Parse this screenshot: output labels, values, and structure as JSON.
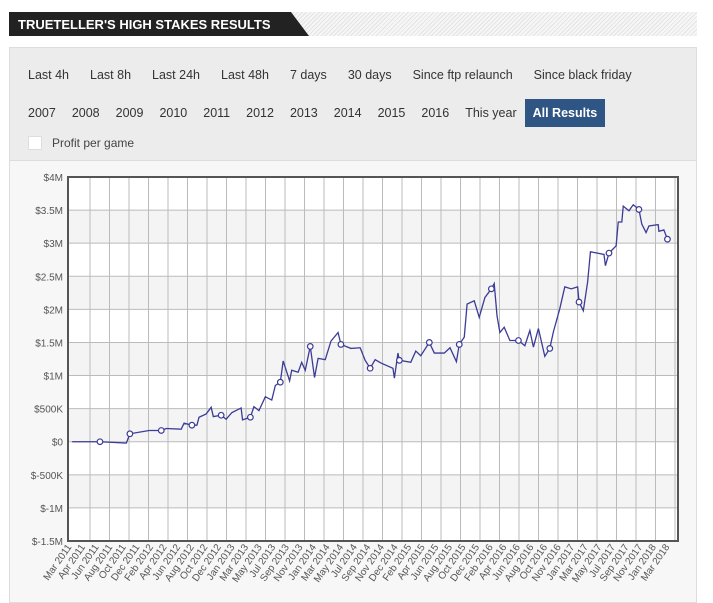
{
  "header": {
    "title": "TRUETELLER'S HIGH STAKES RESULTS"
  },
  "filters": {
    "row1": [
      "Last 4h",
      "Last 8h",
      "Last 24h",
      "Last 48h",
      "7 days",
      "30 days",
      "Since ftp relaunch",
      "Since black friday"
    ],
    "row2": [
      "2007",
      "2008",
      "2009",
      "2010",
      "2011",
      "2012",
      "2013",
      "2014",
      "2015",
      "2016",
      "This year",
      "All Results"
    ],
    "active": "All Results",
    "checkbox_label": "Profit per game",
    "checkbox_checked": false
  },
  "colors": {
    "line": "#3b3b98",
    "accent": "#2e5583"
  },
  "chart_data": {
    "type": "line",
    "title": "",
    "xlabel": "",
    "ylabel": "",
    "ylim": [
      -1500000,
      4000000
    ],
    "xlim": [
      0,
      85
    ],
    "x_unit": "months since Mar 2011",
    "yticks": [
      {
        "v": 4000000,
        "l": "$4M"
      },
      {
        "v": 3500000,
        "l": "$3.5M"
      },
      {
        "v": 3000000,
        "l": "$3M"
      },
      {
        "v": 2500000,
        "l": "$2.5M"
      },
      {
        "v": 2000000,
        "l": "$2M"
      },
      {
        "v": 1500000,
        "l": "$1.5M"
      },
      {
        "v": 1000000,
        "l": "$1M"
      },
      {
        "v": 500000,
        "l": "$500K"
      },
      {
        "v": 0,
        "l": "$0"
      },
      {
        "v": -500000,
        "l": "$-500K"
      },
      {
        "v": -1000000,
        "l": "$-1M"
      },
      {
        "v": -1500000,
        "l": "$-1.5M"
      }
    ],
    "xticks": [
      "Mar 2011",
      "Apr 2011",
      "Jun 2011",
      "Aug 2011",
      "Oct 2011",
      "Dec 2011",
      "Feb 2012",
      "Apr 2012",
      "Jun 2012",
      "Aug 2012",
      "Oct 2012",
      "Dec 2012",
      "Jan 2013",
      "Mar 2013",
      "May 2013",
      "Jul 2013",
      "Sep 2013",
      "Nov 2013",
      "Jan 2014",
      "Mar 2014",
      "May 2014",
      "Jul 2014",
      "Sep 2014",
      "Nov 2014",
      "Dec 2014",
      "Feb 2015",
      "Apr 2015",
      "Jun 2015",
      "Aug 2015",
      "Oct 2015",
      "Dec 2015",
      "Feb 2016",
      "Apr 2016",
      "Jun 2016",
      "Aug 2016",
      "Oct 2016",
      "Nov 2016",
      "Jan 2017",
      "Mar 2017",
      "May 2017",
      "Jul 2017",
      "Sep 2017",
      "Nov 2017",
      "Jan 2018",
      "Mar 2018"
    ],
    "series": [
      {
        "name": "Profit",
        "points": [
          [
            0.3,
            0,
            0
          ],
          [
            4.2,
            0,
            1
          ],
          [
            7.9,
            -0.02,
            0
          ],
          [
            8.4,
            0.12,
            1
          ],
          [
            11.1,
            0.17,
            0
          ],
          [
            12.8,
            0.17,
            1
          ],
          [
            13.5,
            0.2,
            0
          ],
          [
            15.6,
            0.19,
            0
          ],
          [
            16.0,
            0.28,
            0
          ],
          [
            17.1,
            0.25,
            1
          ],
          [
            17.8,
            0.25,
            0
          ],
          [
            18.1,
            0.37,
            0
          ],
          [
            19.1,
            0.42,
            0
          ],
          [
            19.8,
            0.52,
            0
          ],
          [
            20.1,
            0.38,
            0
          ],
          [
            21.2,
            0.4,
            1
          ],
          [
            21.9,
            0.34,
            0
          ],
          [
            22.7,
            0.44,
            0
          ],
          [
            24.0,
            0.51,
            0
          ],
          [
            24.2,
            0.33,
            0
          ],
          [
            25.3,
            0.37,
            1
          ],
          [
            25.8,
            0.53,
            0
          ],
          [
            26.5,
            0.47,
            0
          ],
          [
            27.4,
            0.68,
            0
          ],
          [
            28.3,
            0.63,
            0
          ],
          [
            28.8,
            0.85,
            0
          ],
          [
            29.5,
            0.9,
            1
          ],
          [
            29.9,
            1.22,
            0
          ],
          [
            30.8,
            0.92,
            0
          ],
          [
            31.1,
            1.08,
            0
          ],
          [
            32.0,
            1.05,
            0
          ],
          [
            32.5,
            1.2,
            0
          ],
          [
            33.0,
            1.08,
            0
          ],
          [
            33.7,
            1.44,
            1
          ],
          [
            34.3,
            0.97,
            0
          ],
          [
            34.8,
            1.26,
            0
          ],
          [
            35.8,
            1.24,
            0
          ],
          [
            36.6,
            1.52,
            0
          ],
          [
            37.6,
            1.65,
            0
          ],
          [
            38.0,
            1.47,
            1
          ],
          [
            39.4,
            1.41,
            0
          ],
          [
            40.7,
            1.42,
            0
          ],
          [
            41.4,
            1.23,
            0
          ],
          [
            42.1,
            1.11,
            1
          ],
          [
            42.8,
            1.24,
            0
          ],
          [
            43.6,
            1.19,
            0
          ],
          [
            45.3,
            1.11,
            0
          ],
          [
            45.5,
            0.96,
            0
          ],
          [
            46.0,
            1.34,
            0
          ],
          [
            46.2,
            1.23,
            1
          ],
          [
            47.8,
            1.2,
            0
          ],
          [
            48.5,
            1.37,
            0
          ],
          [
            49.2,
            1.3,
            0
          ],
          [
            50.4,
            1.5,
            1
          ],
          [
            51.1,
            1.34,
            0
          ],
          [
            52.5,
            1.34,
            0
          ],
          [
            53.3,
            1.42,
            0
          ],
          [
            54.2,
            1.21,
            0
          ],
          [
            54.6,
            1.47,
            1
          ],
          [
            55.3,
            1.58,
            0
          ],
          [
            55.7,
            2.08,
            0
          ],
          [
            56.7,
            2.13,
            0
          ],
          [
            57.4,
            1.88,
            0
          ],
          [
            58.2,
            2.18,
            0
          ],
          [
            59.1,
            2.31,
            1
          ],
          [
            59.5,
            2.39,
            0
          ],
          [
            59.9,
            1.9,
            0
          ],
          [
            60.3,
            1.65,
            0
          ],
          [
            60.9,
            1.73,
            0
          ],
          [
            61.7,
            1.53,
            0
          ],
          [
            62.9,
            1.53,
            1
          ],
          [
            63.8,
            1.45,
            0
          ],
          [
            64.5,
            1.68,
            0
          ],
          [
            65.0,
            1.43,
            0
          ],
          [
            65.7,
            1.71,
            0
          ],
          [
            66.6,
            1.29,
            0
          ],
          [
            67.3,
            1.41,
            1
          ],
          [
            67.8,
            1.66,
            0
          ],
          [
            68.7,
            2.01,
            0
          ],
          [
            69.4,
            2.34,
            0
          ],
          [
            70.3,
            2.31,
            0
          ],
          [
            71.2,
            2.34,
            0
          ],
          [
            71.4,
            2.11,
            1
          ],
          [
            72.0,
            1.98,
            0
          ],
          [
            72.6,
            2.41,
            0
          ],
          [
            73.0,
            2.87,
            0
          ],
          [
            74.9,
            2.83,
            0
          ],
          [
            75.1,
            2.66,
            0
          ],
          [
            75.6,
            2.85,
            1
          ],
          [
            76.6,
            2.96,
            0
          ],
          [
            76.9,
            3.32,
            0
          ],
          [
            77.4,
            3.32,
            0
          ],
          [
            77.6,
            3.56,
            0
          ],
          [
            78.4,
            3.49,
            0
          ],
          [
            79.0,
            3.58,
            0
          ],
          [
            79.8,
            3.51,
            1
          ],
          [
            80.2,
            3.29,
            0
          ],
          [
            80.8,
            3.16,
            0
          ],
          [
            81.2,
            3.26,
            0
          ],
          [
            82.5,
            3.28,
            0
          ],
          [
            82.6,
            3.18,
            0
          ],
          [
            83.3,
            3.2,
            0
          ],
          [
            83.8,
            3.06,
            1
          ]
        ],
        "value_unit": "million USD, third item = marker flag"
      }
    ],
    "grid": true,
    "legend": "none"
  }
}
